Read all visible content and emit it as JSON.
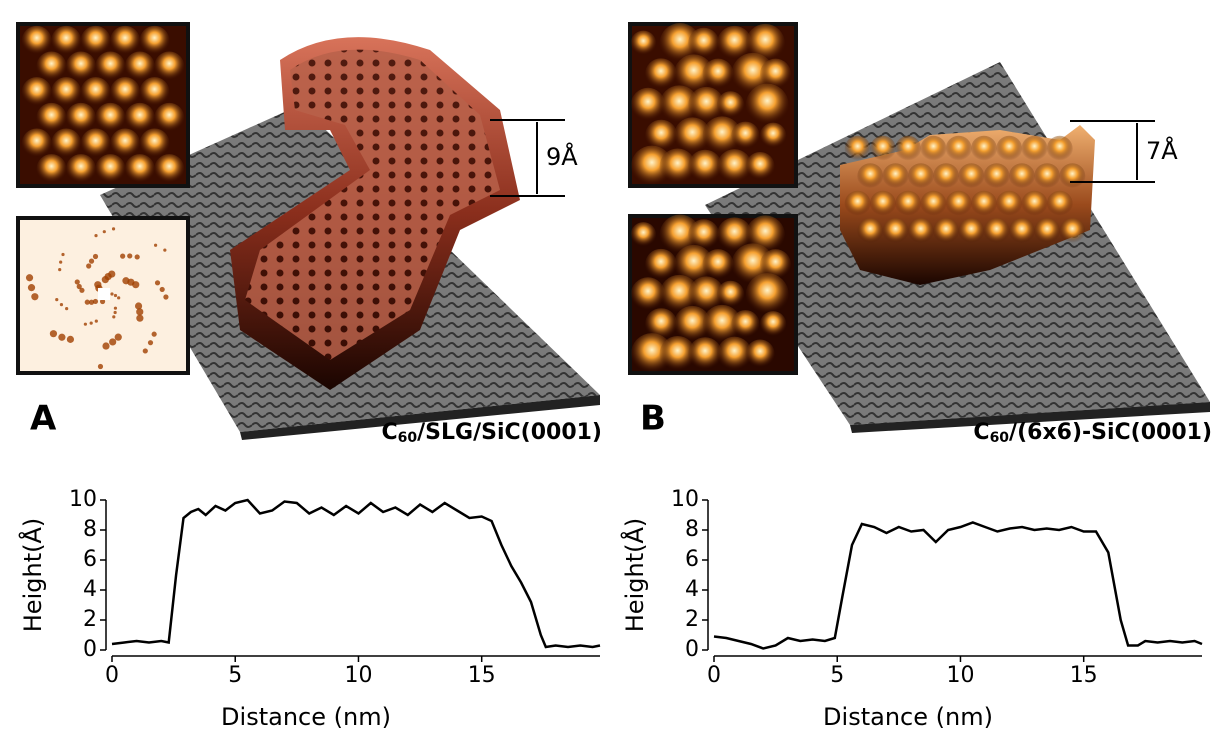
{
  "chart_data": [
    {
      "type": "line",
      "x_label": "Distance (nm)",
      "y_label": "Height(Å)",
      "x": [
        0,
        0.5,
        1,
        1.5,
        2,
        2.3,
        2.6,
        2.9,
        3.2,
        3.5,
        3.8,
        4.2,
        4.6,
        5,
        5.5,
        6,
        6.5,
        7,
        7.5,
        8,
        8.5,
        9,
        9.5,
        10,
        10.5,
        11,
        11.5,
        12,
        12.5,
        13,
        13.5,
        14,
        14.5,
        15,
        15.4,
        15.8,
        16.2,
        16.6,
        17,
        17.4,
        17.6,
        18,
        18.5,
        19,
        19.5,
        19.8
      ],
      "values": [
        0.4,
        0.5,
        0.6,
        0.5,
        0.6,
        0.5,
        5,
        8.8,
        9.2,
        9.4,
        9,
        9.6,
        9.3,
        9.8,
        10,
        9.1,
        9.3,
        9.9,
        9.8,
        9.1,
        9.5,
        9,
        9.6,
        9.1,
        9.8,
        9.2,
        9.5,
        9,
        9.7,
        9.2,
        9.8,
        9.3,
        8.8,
        8.9,
        8.6,
        7,
        5.6,
        4.5,
        3.2,
        1,
        0.2,
        0.3,
        0.2,
        0.3,
        0.2,
        0.3
      ],
      "color": "#000000",
      "xlim": [
        0,
        19.8
      ],
      "ylim": [
        0,
        10
      ],
      "xticks": [
        0,
        5,
        10,
        15
      ],
      "yticks": [
        0,
        2,
        4,
        6,
        8,
        10
      ]
    },
    {
      "type": "line",
      "x_label": "Distance (nm)",
      "y_label": "Height(Å)",
      "x": [
        0,
        0.5,
        1,
        1.5,
        2,
        2.5,
        3,
        3.5,
        4,
        4.5,
        4.9,
        5.2,
        5.6,
        6,
        6.5,
        7,
        7.5,
        8,
        8.5,
        9,
        9.5,
        10,
        10.5,
        11,
        11.5,
        12,
        12.5,
        13,
        13.5,
        14,
        14.5,
        15,
        15.5,
        16,
        16.5,
        16.8,
        17.2,
        17.5,
        18,
        18.5,
        19,
        19.5,
        19.8
      ],
      "values": [
        0.9,
        0.8,
        0.6,
        0.4,
        0.1,
        0.3,
        0.8,
        0.6,
        0.7,
        0.6,
        0.8,
        3.5,
        7,
        8.4,
        8.2,
        7.8,
        8.2,
        7.9,
        8,
        7.2,
        8,
        8.2,
        8.5,
        8.2,
        7.9,
        8.1,
        8.2,
        8,
        8.1,
        8,
        8.2,
        7.9,
        7.9,
        6.5,
        2,
        0.3,
        0.3,
        0.6,
        0.5,
        0.6,
        0.5,
        0.6,
        0.4
      ],
      "color": "#000000",
      "xlim": [
        0,
        19.8
      ],
      "ylim": [
        0,
        10
      ],
      "xticks": [
        0,
        5,
        10,
        15
      ],
      "yticks": [
        0,
        2,
        4,
        6,
        8,
        10
      ]
    }
  ],
  "panels": [
    {
      "label": "A",
      "caption": [
        "C",
        "60",
        "/SLG/SiC(0001)"
      ],
      "step": "9Å"
    },
    {
      "label": "B",
      "caption": [
        "C",
        "60",
        "/(6x6)-SiC(0001)"
      ],
      "step": "7Å"
    }
  ]
}
